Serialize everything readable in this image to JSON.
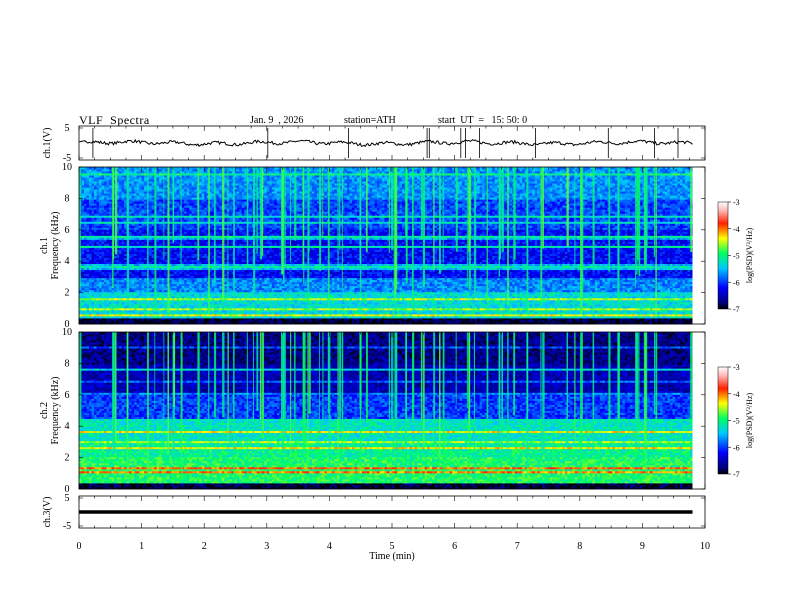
{
  "header": {
    "title": "VLF  Spectra",
    "date": "Jan. 9  , 2026",
    "station": "station=ATH",
    "start": "start  UT  =   15: 50: 0"
  },
  "chart_data": {
    "type": "heatmap",
    "xlabel": "Time  (min)",
    "xlim": [
      0,
      10
    ],
    "xticks": [
      0,
      1,
      2,
      3,
      4,
      5,
      6,
      7,
      8,
      9,
      10
    ],
    "data_end_min": 9.8,
    "panels": [
      {
        "id": "ch1v",
        "kind": "waveform",
        "ylabel": "ch.1(V)",
        "ylim": [
          -5,
          5
        ],
        "ytick_labels": [
          "5",
          "-5"
        ],
        "baseline": 0
      },
      {
        "id": "ch1spec",
        "kind": "spectrogram",
        "ylabel_top": "ch.1",
        "ylabel": "Frequency  (kHz)",
        "ylim": [
          0,
          10
        ],
        "yticks": [
          0,
          2,
          4,
          6,
          8,
          10
        ],
        "colorbar_label": "log(PSD)(V²/Hz)",
        "colorbar_range": [
          -7,
          -3
        ],
        "colorbar_ticks": [
          "-3",
          "-4",
          "-5",
          "-6",
          "-7"
        ]
      },
      {
        "id": "ch2spec",
        "kind": "spectrogram",
        "ylabel_top": "ch.2",
        "ylabel": "Frequency  (kHz)",
        "ylim": [
          0,
          10
        ],
        "yticks": [
          0,
          2,
          4,
          6,
          8,
          10
        ],
        "colorbar_label": "log(PSD)(V²/Hz)",
        "colorbar_range": [
          -7,
          -3
        ],
        "colorbar_ticks": [
          "-3",
          "-4",
          "-5",
          "-6",
          "-7"
        ]
      },
      {
        "id": "ch3v",
        "kind": "waveform",
        "ylabel": "ch.3(V)",
        "ylim": [
          -5,
          5
        ],
        "ytick_labels": [
          "5",
          "-5"
        ],
        "baseline": 0
      }
    ]
  }
}
